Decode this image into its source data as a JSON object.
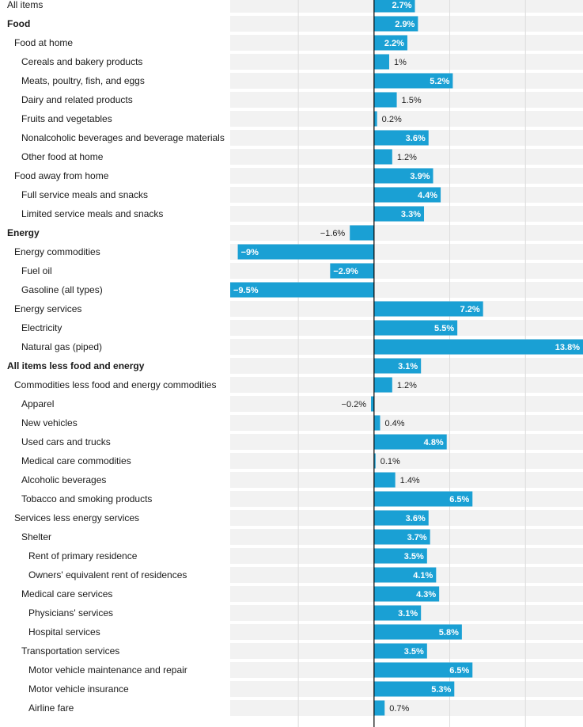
{
  "chart_data": {
    "type": "bar",
    "orientation": "horizontal",
    "xlim": [
      -9.5,
      13.8
    ],
    "grid": true,
    "value_suffix": "%",
    "colors": {
      "bar": "#1aa0d4",
      "row_band": "#f2f2f2",
      "gridline": "#dcdcdc",
      "zero_line": "#000000"
    },
    "rows": [
      {
        "label": "All items",
        "value": 2.7,
        "indent": 0,
        "bold": false
      },
      {
        "label": "Food",
        "value": 2.9,
        "indent": 0,
        "bold": true
      },
      {
        "label": "Food at home",
        "value": 2.2,
        "indent": 1,
        "bold": false
      },
      {
        "label": "Cereals and bakery products",
        "value": 1,
        "indent": 2,
        "bold": false
      },
      {
        "label": "Meats, poultry, fish, and eggs",
        "value": 5.2,
        "indent": 2,
        "bold": false
      },
      {
        "label": "Dairy and related products",
        "value": 1.5,
        "indent": 2,
        "bold": false
      },
      {
        "label": "Fruits and vegetables",
        "value": 0.2,
        "indent": 2,
        "bold": false
      },
      {
        "label": "Nonalcoholic beverages and beverage materials",
        "value": 3.6,
        "indent": 2,
        "bold": false
      },
      {
        "label": "Other food at home",
        "value": 1.2,
        "indent": 2,
        "bold": false
      },
      {
        "label": "Food away from home",
        "value": 3.9,
        "indent": 1,
        "bold": false
      },
      {
        "label": "Full service meals and snacks",
        "value": 4.4,
        "indent": 2,
        "bold": false
      },
      {
        "label": "Limited service meals and snacks",
        "value": 3.3,
        "indent": 2,
        "bold": false
      },
      {
        "label": "Energy",
        "value": -1.6,
        "indent": 0,
        "bold": true
      },
      {
        "label": "Energy commodities",
        "value": -9,
        "indent": 1,
        "bold": false
      },
      {
        "label": "Fuel oil",
        "value": -2.9,
        "indent": 2,
        "bold": false
      },
      {
        "label": "Gasoline (all types)",
        "value": -9.5,
        "indent": 2,
        "bold": false
      },
      {
        "label": "Energy services",
        "value": 7.2,
        "indent": 1,
        "bold": false
      },
      {
        "label": "Electricity",
        "value": 5.5,
        "indent": 2,
        "bold": false
      },
      {
        "label": "Natural gas (piped)",
        "value": 13.8,
        "indent": 2,
        "bold": false
      },
      {
        "label": "All items less food and energy",
        "value": 3.1,
        "indent": 0,
        "bold": true
      },
      {
        "label": "Commodities less food and energy commodities",
        "value": 1.2,
        "indent": 1,
        "bold": false
      },
      {
        "label": "Apparel",
        "value": -0.2,
        "indent": 2,
        "bold": false
      },
      {
        "label": "New vehicles",
        "value": 0.4,
        "indent": 2,
        "bold": false
      },
      {
        "label": "Used cars and trucks",
        "value": 4.8,
        "indent": 2,
        "bold": false
      },
      {
        "label": "Medical care commodities",
        "value": 0.1,
        "indent": 2,
        "bold": false
      },
      {
        "label": "Alcoholic beverages",
        "value": 1.4,
        "indent": 2,
        "bold": false
      },
      {
        "label": "Tobacco and smoking products",
        "value": 6.5,
        "indent": 2,
        "bold": false
      },
      {
        "label": "Services less energy services",
        "value": 3.6,
        "indent": 1,
        "bold": false
      },
      {
        "label": "Shelter",
        "value": 3.7,
        "indent": 2,
        "bold": false
      },
      {
        "label": "Rent of primary residence",
        "value": 3.5,
        "indent": 3,
        "bold": false
      },
      {
        "label": "Owners' equivalent rent of residences",
        "value": 4.1,
        "indent": 3,
        "bold": false
      },
      {
        "label": "Medical care services",
        "value": 4.3,
        "indent": 2,
        "bold": false
      },
      {
        "label": "Physicians' services",
        "value": 3.1,
        "indent": 3,
        "bold": false
      },
      {
        "label": "Hospital services",
        "value": 5.8,
        "indent": 3,
        "bold": false
      },
      {
        "label": "Transportation services",
        "value": 3.5,
        "indent": 2,
        "bold": false
      },
      {
        "label": "Motor vehicle maintenance and repair",
        "value": 6.5,
        "indent": 3,
        "bold": false
      },
      {
        "label": "Motor vehicle insurance",
        "value": 5.3,
        "indent": 3,
        "bold": false
      },
      {
        "label": "Airline fare",
        "value": 0.7,
        "indent": 3,
        "bold": false
      }
    ]
  }
}
